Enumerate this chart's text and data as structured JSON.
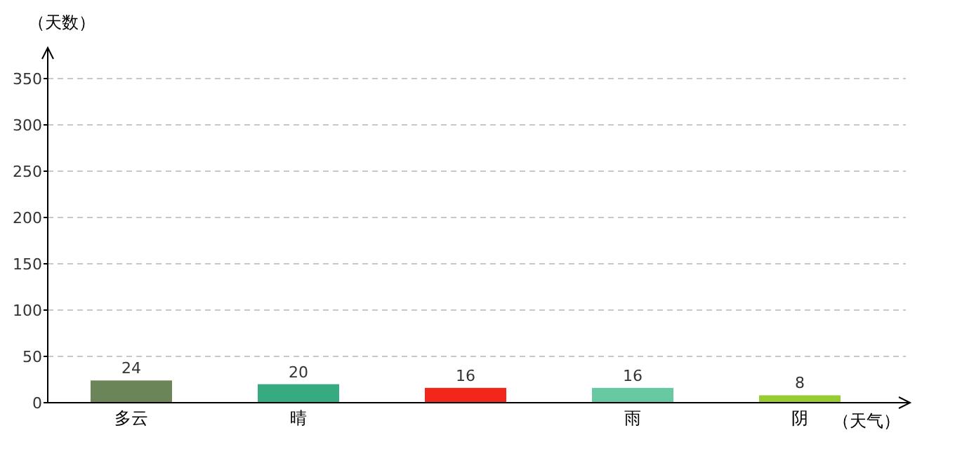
{
  "chart_data": {
    "type": "bar",
    "ylabel": "（天数）",
    "xlabel": "（天气）",
    "categories": [
      "多云",
      "晴",
      null,
      "雨",
      "阴"
    ],
    "values": [
      24,
      20,
      16,
      16,
      8
    ],
    "colors": [
      "#6b8558",
      "#36ab80",
      "#f2261a",
      "#66c9a1",
      "#99cc33"
    ],
    "ylim": [
      0,
      350
    ],
    "yticks": [
      0,
      50,
      100,
      150,
      200,
      250,
      300,
      350
    ],
    "grid": "y",
    "data_labels": true
  }
}
